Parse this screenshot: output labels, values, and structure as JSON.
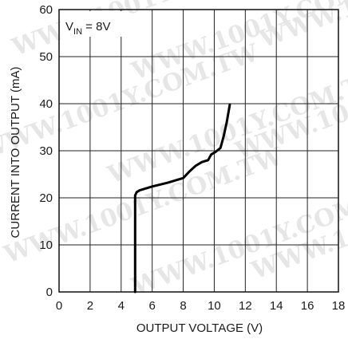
{
  "chart_data": {
    "type": "line",
    "xlabel": "OUTPUT VOLTAGE (V)",
    "ylabel": "CURRENT INTO OUTPUT (mA)",
    "xlim": [
      0,
      18
    ],
    "ylim": [
      0,
      60
    ],
    "x_ticks": [
      "0",
      "2",
      "4",
      "6",
      "8",
      "10",
      "12",
      "14",
      "16",
      "18"
    ],
    "y_ticks": [
      "0",
      "10",
      "20",
      "30",
      "40",
      "50",
      "60"
    ],
    "grid": true,
    "annotation": {
      "main": "V",
      "sub": "IN",
      "rest": " = 8V"
    },
    "series": [
      {
        "x": [
          4.9,
          4.9,
          4.9,
          5.0,
          5.2,
          6.0,
          7.0,
          8.0,
          8.4,
          8.8,
          9.2,
          9.6,
          9.8,
          10.1,
          10.4,
          10.6,
          10.8,
          11.0
        ],
        "y": [
          0,
          10,
          20.5,
          21.2,
          21.6,
          22.4,
          23.2,
          24.2,
          25.6,
          26.8,
          27.6,
          28.0,
          29.2,
          29.8,
          30.6,
          33.0,
          36.0,
          39.8
        ]
      }
    ],
    "watermark": "WWW.1001Y.COM.TW"
  }
}
